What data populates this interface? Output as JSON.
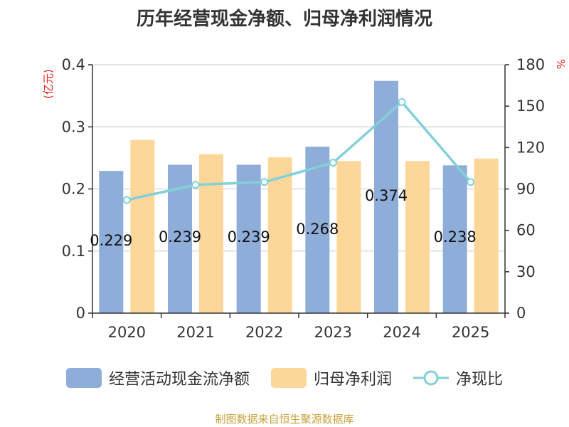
{
  "chart_data": {
    "type": "bar",
    "title": "历年经营现金净额、归母净利润情况",
    "categories": [
      "2020",
      "2021",
      "2022",
      "2023",
      "2024",
      "2025"
    ],
    "series": [
      {
        "name": "经营活动现金流净额",
        "type": "bar",
        "axis": "left",
        "color": "#8eadd9",
        "values": [
          0.229,
          0.239,
          0.239,
          0.268,
          0.374,
          0.238
        ]
      },
      {
        "name": "归母净利润",
        "type": "bar",
        "axis": "left",
        "color": "#fdd699",
        "values": [
          0.279,
          0.256,
          0.251,
          0.245,
          0.245,
          0.249
        ]
      },
      {
        "name": "净现比",
        "type": "line",
        "axis": "right",
        "color": "#82d0d8",
        "values": [
          82,
          93,
          95,
          109,
          153,
          95
        ]
      }
    ],
    "data_labels": [
      "0.229",
      "0.239",
      "0.239",
      "0.268",
      "0.374",
      "0.238"
    ],
    "y_left": {
      "unit": "(亿元)",
      "ylim": [
        0,
        0.4
      ],
      "ticks": [
        "0",
        "0.1",
        "0.2",
        "0.3",
        "0.4"
      ]
    },
    "y_right": {
      "unit": "%",
      "ylim": [
        0,
        180
      ],
      "ticks": [
        "0",
        "30",
        "60",
        "90",
        "120",
        "150",
        "180"
      ]
    },
    "grid": true,
    "legend_position": "bottom"
  },
  "source": "制图数据来自恒生聚源数据库"
}
